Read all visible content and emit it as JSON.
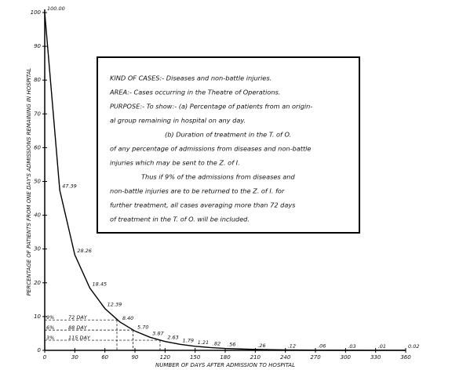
{
  "chart_data": {
    "type": "line",
    "x_label": "NUMBER OF DAYS AFTER ADMISSION TO HOSPITAL",
    "y_label": "PERCENTAGE OF PATIENTS FROM ONE DAY'S ADMISSIONS REMAINING IN HOSPITAL",
    "x": [
      0,
      15,
      30,
      45,
      60,
      75,
      90,
      105,
      120,
      135,
      150,
      165,
      180,
      210,
      240,
      270,
      300,
      330,
      360
    ],
    "series": [
      {
        "color": "#000000",
        "values": [
          100,
          47.39,
          28.26,
          18.45,
          12.39,
          8.4,
          5.7,
          3.87,
          2.63,
          1.79,
          1.21,
          0.82,
          0.56,
          0.26,
          0.12,
          0.06,
          0.03,
          0.01,
          0.02
        ],
        "value_labels": [
          "100.00",
          "47.39",
          "28.26",
          "18.45",
          "12.39",
          "8.40",
          "5.70",
          "3.87",
          "2.63",
          "1.79",
          "1.21",
          ".82",
          ".56",
          ".26",
          ".12",
          ".06",
          ".03",
          ".01",
          "0.02"
        ]
      }
    ],
    "xlim": [
      0,
      360
    ],
    "xticks": [
      0,
      30,
      60,
      90,
      120,
      150,
      180,
      210,
      240,
      270,
      300,
      330,
      360
    ],
    "ylim": [
      0,
      100
    ],
    "yticks": [
      0,
      10,
      20,
      30,
      40,
      50,
      60,
      70,
      80,
      90,
      100
    ],
    "grid": false,
    "guides": [
      {
        "value": 9,
        "label": "9%",
        "day": 72,
        "day_label": "72 DAY"
      },
      {
        "value": 6,
        "label": "6%",
        "day": 88,
        "day_label": "88 DAY"
      },
      {
        "value": 3,
        "label": "3%",
        "day": 115,
        "day_label": "115 DAY"
      }
    ],
    "annotation": [
      "KIND OF CASES:- Diseases and non-battle injuries.",
      "AREA:- Cases occurring in the Theatre of Operations.",
      "PURPOSE:- To show:- (a) Percentage of patients from an origin-",
      "al group remaining in hospital on any day.",
      "(b) Duration of treatment in the T. of O.",
      "of any percentage of admissions from diseases and non-battle",
      "injuries which may be sent to the Z. of I.",
      "Thus if 9% of the admissions from diseases and",
      "non-battle injuries are to be returned to the Z. of I. for",
      "further treatment, all cases averaging more than 72 days",
      "of treatment in the T. of O. will be included."
    ]
  }
}
